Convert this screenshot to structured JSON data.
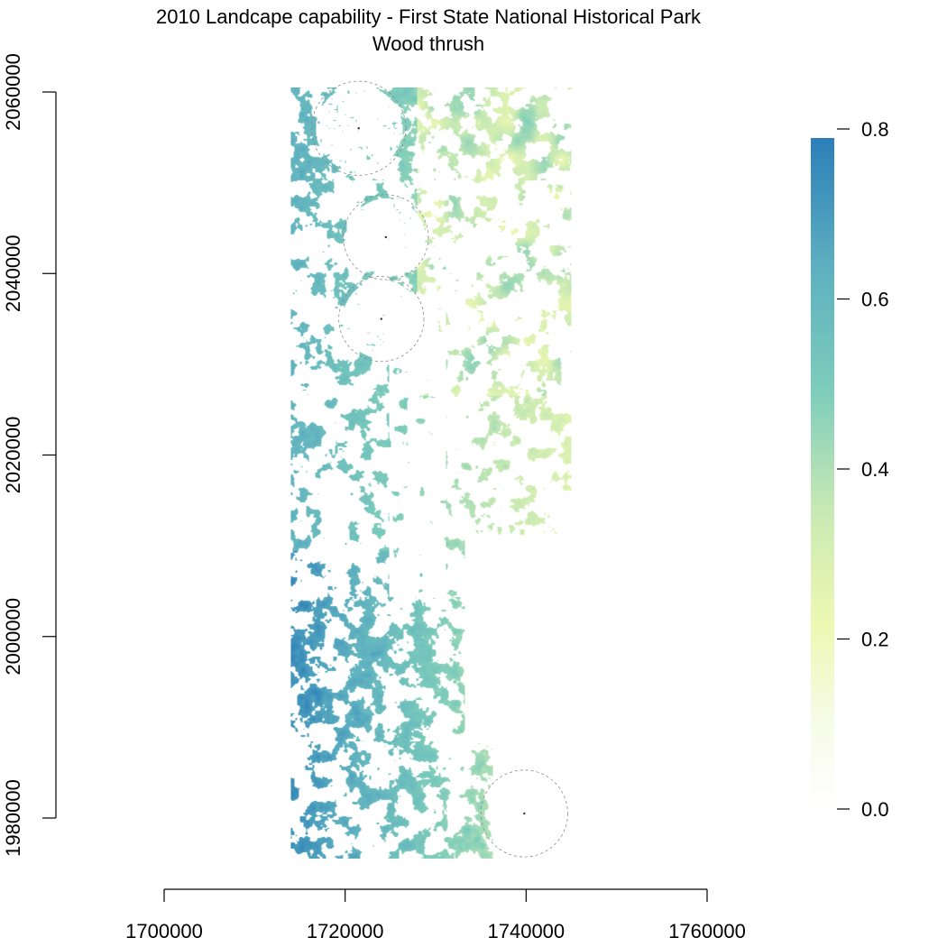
{
  "chart_data": {
    "type": "heatmap",
    "title": "2010 Landcape capability - First State National Historical Park",
    "subtitle": "Wood thrush",
    "xlabel": "",
    "ylabel": "",
    "x_ticks": [
      1700000,
      1720000,
      1740000,
      1760000
    ],
    "x_tick_labels": [
      "1700000",
      "1720000",
      "1740000",
      "1760000"
    ],
    "y_ticks": [
      1980000,
      2000000,
      2020000,
      2040000,
      2060000
    ],
    "y_tick_labels": [
      "1980000",
      "2000000",
      "2020000",
      "2040000",
      "2060000"
    ],
    "xlim": [
      1700000,
      1760000
    ],
    "ylim": [
      1980000,
      2060000
    ],
    "raster_extent": {
      "xmin": 1714000,
      "xmax": 1745000,
      "ymin": 1975500,
      "ymax": 2060500
    },
    "value_range": [
      0,
      0.78
    ],
    "colorbar": {
      "ticks": [
        0.0,
        0.2,
        0.4,
        0.6,
        0.8
      ],
      "tick_labels": [
        "0.0",
        "0.2",
        "0.4",
        "0.6",
        "0.8"
      ],
      "range": [
        0,
        0.78
      ],
      "colors": [
        "#ffffff",
        "#f5fbe0",
        "#edf8b1",
        "#c7e9b4",
        "#7fcdbb",
        "#41b6c4",
        "#2c7fb8"
      ]
    },
    "buffer_circles": [
      {
        "cx": 1724500,
        "cy": 2044000,
        "r": 4700
      },
      {
        "cx": 1724000,
        "cy": 2035000,
        "r": 4700
      },
      {
        "cx": 1721500,
        "cy": 2056000,
        "r": 5200
      },
      {
        "cx": 1739800,
        "cy": 1980500,
        "r": 4800
      }
    ],
    "grid": false,
    "legend": "right"
  }
}
